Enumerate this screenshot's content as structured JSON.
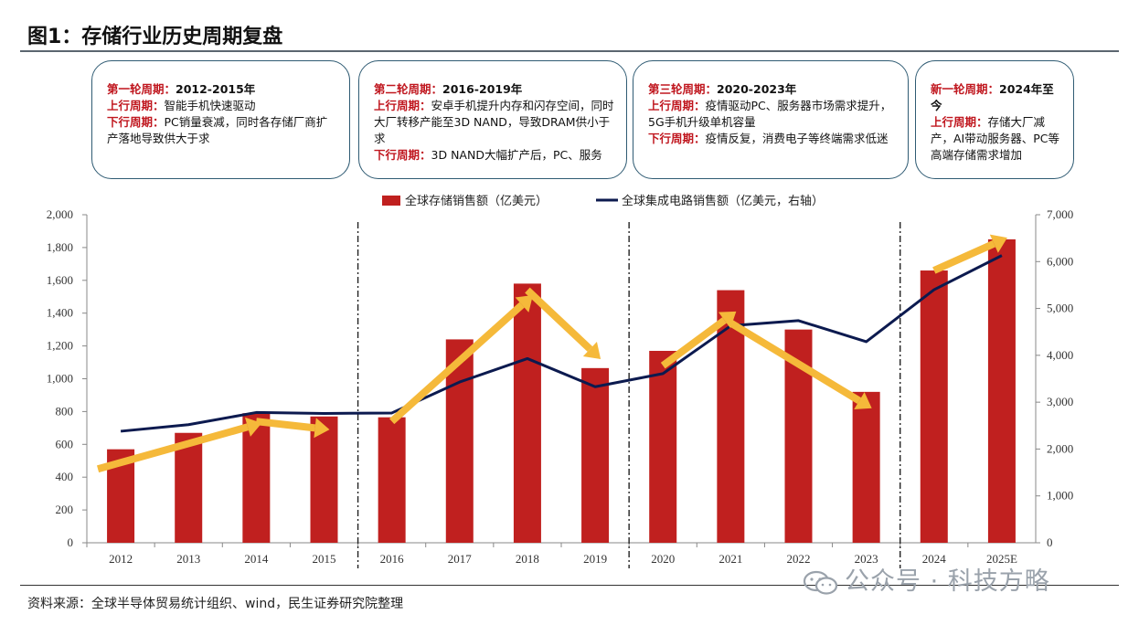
{
  "title": "图1：存储行业历史周期复盘",
  "source": "资料来源：全球半导体贸易统计组织、wind，民生证券研究院整理",
  "watermark": "公众号 · 科技方略",
  "boxes": [
    {
      "head_red": "第一轮周期：",
      "head_black": "2012-2015年",
      "lines": [
        {
          "label": "上行周期：",
          "text": "智能手机快速驱动"
        },
        {
          "label": "下行周期：",
          "text": "PC销量衰减，同时各存储厂商扩产落地导致供大于求"
        }
      ]
    },
    {
      "head_red": "第二轮周期：",
      "head_black": "2016-2019年",
      "lines": [
        {
          "label": "上行周期：",
          "text": "安卓手机提升内存和闪存空间，同时大厂转移产能至3D NAND，导致DRAM供小于求"
        },
        {
          "label": "下行周期：",
          "text": "3D NAND大幅扩产后，PC、服务"
        }
      ]
    },
    {
      "head_red": "第三轮周期：",
      "head_black": "2020-2023年",
      "lines": [
        {
          "label": "上行周期：",
          "text": "疫情驱动PC、服务器市场需求提升，5G手机升级单机容量"
        },
        {
          "label": "下行周期：",
          "text": "疫情反复，消费电子等终端需求低迷"
        }
      ]
    },
    {
      "head_red": "新一轮周期：",
      "head_black": "2024年至今",
      "lines": [
        {
          "label": "上行周期：",
          "text": "存储大厂减产，AI带动服务器、PC等高端存储需求增加"
        }
      ]
    }
  ],
  "chart_data": {
    "type": "bar",
    "categories": [
      "2012",
      "2013",
      "2014",
      "2015",
      "2016",
      "2017",
      "2018",
      "2019",
      "2020",
      "2021",
      "2022",
      "2023",
      "2024",
      "2025E"
    ],
    "series": [
      {
        "name": "全球存储销售额（亿美元）",
        "kind": "bar",
        "axis": "left",
        "color": "#c0201f",
        "values": [
          570,
          670,
          790,
          770,
          765,
          1240,
          1580,
          1065,
          1170,
          1540,
          1300,
          920,
          1660,
          1850
        ]
      },
      {
        "name": "全球集成电路销售额（亿美元，右轴）",
        "kind": "line",
        "axis": "right",
        "color": "#0c1a4f",
        "values": [
          2380,
          2520,
          2780,
          2760,
          2770,
          3430,
          3930,
          3330,
          3610,
          4630,
          4740,
          4290,
          5400,
          6130
        ]
      }
    ],
    "left_axis": {
      "min": 0,
      "max": 2000,
      "ticks": [
        0,
        200,
        400,
        600,
        800,
        1000,
        1200,
        1400,
        1600,
        1800,
        2000
      ],
      "tick_labels": [
        "0",
        "200",
        "400",
        "600",
        "800",
        "1,000",
        "1,200",
        "1,400",
        "1,600",
        "1,800",
        "2,000"
      ]
    },
    "right_axis": {
      "min": 0,
      "max": 7000,
      "ticks": [
        0,
        1000,
        2000,
        3000,
        4000,
        5000,
        6000,
        7000
      ],
      "tick_labels": [
        "0",
        "1,000",
        "2,000",
        "3,000",
        "4,000",
        "5,000",
        "6,000",
        "7,000"
      ]
    },
    "cycle_dividers_after": [
      "2015",
      "2019",
      "2023"
    ],
    "trend_arrows": [
      {
        "from": [
          "2012",
          450
        ],
        "to": [
          "2014",
          730
        ],
        "direction": "up"
      },
      {
        "from": [
          "2014",
          740
        ],
        "to": [
          "2015",
          690
        ],
        "direction": "down"
      },
      {
        "from": [
          "2016",
          740
        ],
        "to": [
          "2018",
          1510
        ],
        "direction": "up"
      },
      {
        "from": [
          "2018",
          1540
        ],
        "to": [
          "2019",
          1120
        ],
        "direction": "down"
      },
      {
        "from": [
          "2020",
          1080
        ],
        "to": [
          "2021",
          1410
        ],
        "direction": "up"
      },
      {
        "from": [
          "2021",
          1340
        ],
        "to": [
          "2023",
          820
        ],
        "direction": "down"
      },
      {
        "from": [
          "2024",
          1660
        ],
        "to": [
          "2025E",
          1860
        ],
        "direction": "up"
      }
    ],
    "arrow_color": "#f5b93a",
    "legend_position": "top-center"
  }
}
